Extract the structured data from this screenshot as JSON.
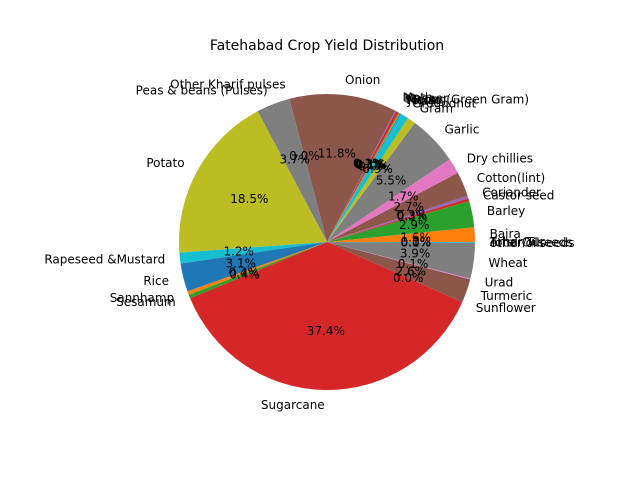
{
  "chart_data": {
    "type": "pie",
    "title": "Fatehabad Crop Yield Distribution",
    "start_angle_deg": 0,
    "direction": "counterclockwise",
    "slices": [
      {
        "label": "Arhar/Tur",
        "value": 0.0,
        "pct_label": "0.0%",
        "color": "#1f77b4"
      },
      {
        "label": "Bajra",
        "value": 1.6,
        "pct_label": "1.6%",
        "color": "#ff7f0e"
      },
      {
        "label": "Barley",
        "value": 2.9,
        "pct_label": "2.9%",
        "color": "#2ca02c"
      },
      {
        "label": "Castor seed",
        "value": 0.3,
        "pct_label": "0.3%",
        "color": "#d62728"
      },
      {
        "label": "Coriander",
        "value": 0.3,
        "pct_label": "0.3%",
        "color": "#9467bd"
      },
      {
        "label": "Cotton(lint)",
        "value": 2.7,
        "pct_label": "2.7%",
        "color": "#8c564b"
      },
      {
        "label": "Dry chillies",
        "value": 1.7,
        "pct_label": "1.7%",
        "color": "#e377c2"
      },
      {
        "label": "Garlic",
        "value": 5.5,
        "pct_label": "5.5%",
        "color": "#7f7f7f"
      },
      {
        "label": "Gram",
        "value": 0.9,
        "pct_label": "0.9%",
        "color": "#bcbd22"
      },
      {
        "label": "Groundnut",
        "value": 0.9,
        "pct_label": "0.9%",
        "color": "#17becf"
      },
      {
        "label": "Jowar",
        "value": 0.1,
        "pct_label": "0.1%",
        "color": "#1f77b4"
      },
      {
        "label": "Maize",
        "value": 0.1,
        "pct_label": "0.1%",
        "color": "#ff7f0e"
      },
      {
        "label": "Moong(Green Gram)",
        "value": 0.1,
        "pct_label": "0.1%",
        "color": "#2ca02c"
      },
      {
        "label": "Masoor",
        "value": 0.3,
        "pct_label": "0.3%",
        "color": "#d62728"
      },
      {
        "label": "Moth",
        "value": 0.1,
        "pct_label": "0.1%",
        "color": "#9467bd"
      },
      {
        "label": "Onion",
        "value": 11.8,
        "pct_label": "11.8%",
        "color": "#8c564b"
      },
      {
        "label": "Other Kharif pulses",
        "value": 0.0,
        "pct_label": "0.0%",
        "color": "#e377c2"
      },
      {
        "label": "Peas & beans (Pulses)",
        "value": 3.7,
        "pct_label": "3.7%",
        "color": "#7f7f7f"
      },
      {
        "label": "Potato",
        "value": 18.5,
        "pct_label": "18.5%",
        "color": "#bcbd22"
      },
      {
        "label": "Rapeseed &Mustard",
        "value": 1.2,
        "pct_label": "1.2%",
        "color": "#17becf"
      },
      {
        "label": "Rice",
        "value": 3.1,
        "pct_label": "3.1%",
        "color": "#1f77b4"
      },
      {
        "label": "Sannhamp",
        "value": 0.4,
        "pct_label": "0.4%",
        "color": "#ff7f0e"
      },
      {
        "label": "Sesamum",
        "value": 0.4,
        "pct_label": "0.4%",
        "color": "#2ca02c"
      },
      {
        "label": "Sugarcane",
        "value": 37.4,
        "pct_label": "37.4%",
        "color": "#d62728"
      },
      {
        "label": "Sunflower",
        "value": 0.0,
        "pct_label": "0.0%",
        "color": "#9467bd"
      },
      {
        "label": "Turmeric",
        "value": 2.6,
        "pct_label": "2.6%",
        "color": "#8c564b"
      },
      {
        "label": "Urad",
        "value": 0.1,
        "pct_label": "0.1%",
        "color": "#e377c2"
      },
      {
        "label": "Wheat",
        "value": 3.9,
        "pct_label": "3.9%",
        "color": "#7f7f7f"
      },
      {
        "label": "other oilseeds",
        "value": 0.0,
        "pct_label": "0.0%",
        "color": "#bcbd22"
      },
      {
        "label": "Total Oilseeds",
        "value": 0.1,
        "pct_label": "0.1%",
        "color": "#17becf"
      }
    ]
  }
}
